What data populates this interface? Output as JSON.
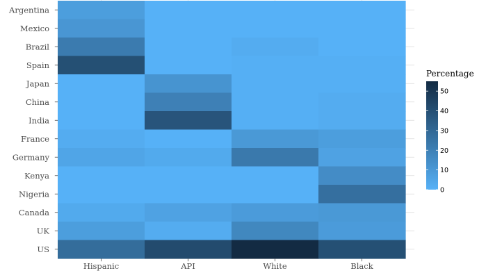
{
  "chart_data": {
    "type": "heatmap",
    "title": "",
    "xlabel": "",
    "ylabel": "",
    "x_categories": [
      "Hispanic",
      "API",
      "White",
      "Black"
    ],
    "y_categories": [
      "Argentina",
      "Mexico",
      "Brazil",
      "Spain",
      "Japan",
      "China",
      "India",
      "France",
      "Germany",
      "Kenya",
      "Nigeria",
      "Canada",
      "UK",
      "US"
    ],
    "values": [
      [
        8,
        0,
        0,
        0
      ],
      [
        11,
        0,
        0,
        0
      ],
      [
        22,
        0,
        2,
        0
      ],
      [
        40,
        0,
        1,
        1
      ],
      [
        0,
        12,
        1,
        1
      ],
      [
        0,
        20,
        1,
        2
      ],
      [
        0,
        38,
        1,
        2
      ],
      [
        2,
        0,
        10,
        8
      ],
      [
        5,
        3,
        23,
        6
      ],
      [
        0,
        0,
        0,
        15
      ],
      [
        0,
        0,
        0,
        27
      ],
      [
        3,
        6,
        9,
        10
      ],
      [
        8,
        2,
        17,
        9
      ],
      [
        28,
        42,
        55,
        40
      ]
    ],
    "colorscale": {
      "low": "#56b1f7",
      "high": "#132b43"
    },
    "legend": {
      "title": "Percentage",
      "ticks": [
        0,
        10,
        20,
        30,
        40,
        50
      ],
      "range": [
        0,
        55
      ],
      "placement": "right"
    },
    "grid": true
  }
}
